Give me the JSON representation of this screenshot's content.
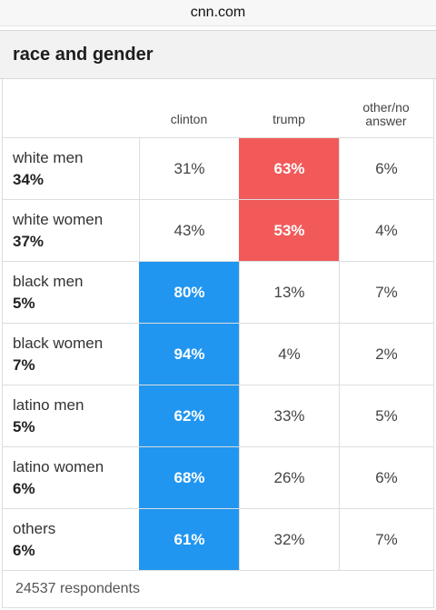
{
  "browser": {
    "url": "cnn.com"
  },
  "card": {
    "title": "race and gender"
  },
  "columns": [
    "clinton",
    "trump",
    "other/no answer"
  ],
  "rows": [
    {
      "group": "white men",
      "share": "34%",
      "clinton": "31%",
      "trump": "63%",
      "other": "6%",
      "winner": "trump"
    },
    {
      "group": "white women",
      "share": "37%",
      "clinton": "43%",
      "trump": "53%",
      "other": "4%",
      "winner": "trump"
    },
    {
      "group": "black men",
      "share": "5%",
      "clinton": "80%",
      "trump": "13%",
      "other": "7%",
      "winner": "clinton"
    },
    {
      "group": "black women",
      "share": "7%",
      "clinton": "94%",
      "trump": "4%",
      "other": "2%",
      "winner": "clinton"
    },
    {
      "group": "latino men",
      "share": "5%",
      "clinton": "62%",
      "trump": "33%",
      "other": "5%",
      "winner": "clinton"
    },
    {
      "group": "latino women",
      "share": "6%",
      "clinton": "68%",
      "trump": "26%",
      "other": "6%",
      "winner": "clinton"
    },
    {
      "group": "others",
      "share": "6%",
      "clinton": "61%",
      "trump": "32%",
      "other": "7%",
      "winner": "clinton"
    }
  ],
  "footer": {
    "respondents": "24537 respondents"
  },
  "colors": {
    "clinton": "#2196f0",
    "trump": "#f25a5a"
  }
}
